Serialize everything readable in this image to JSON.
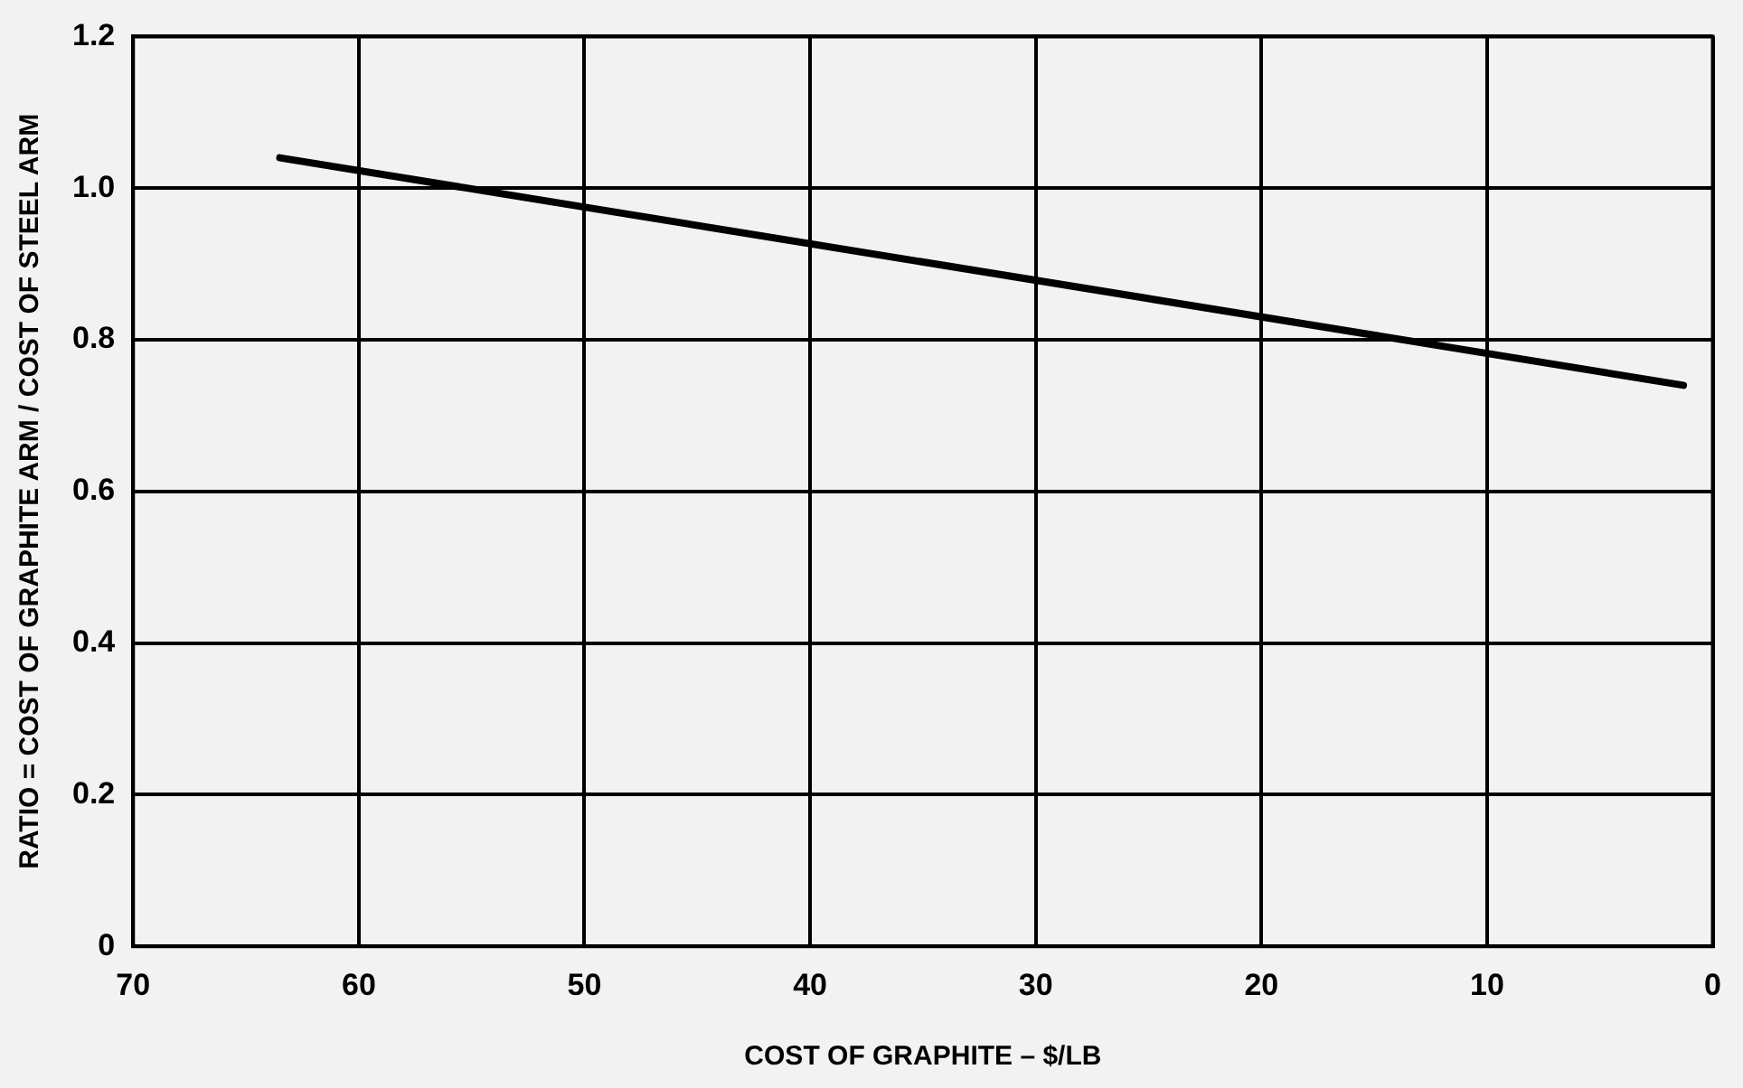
{
  "chart_data": {
    "type": "line",
    "xlabel": "COST OF GRAPHITE – $/LB",
    "ylabel": "RATIO = COST OF GRAPHITE ARM / COST OF STEEL ARM",
    "series": [
      {
        "color": "#000000",
        "x": [
          63.5,
          1.3
        ],
        "values": [
          1.04,
          0.74
        ]
      }
    ],
    "xlim": [
      70,
      0
    ],
    "xticks": [
      70,
      60,
      50,
      40,
      30,
      20,
      10,
      0
    ],
    "ylim": [
      0,
      1.2
    ],
    "yticks": [
      {
        "value": 0,
        "label": "0"
      },
      {
        "value": 0.2,
        "label": "0.2"
      },
      {
        "value": 0.4,
        "label": "0.4"
      },
      {
        "value": 0.6,
        "label": "0.6"
      },
      {
        "value": 0.8,
        "label": "0.8"
      },
      {
        "value": 1,
        "label": "1.0"
      },
      {
        "value": 1.2,
        "label": "1.2"
      }
    ],
    "grid": true,
    "legend": false,
    "marker": "none",
    "line_style": "solid"
  }
}
